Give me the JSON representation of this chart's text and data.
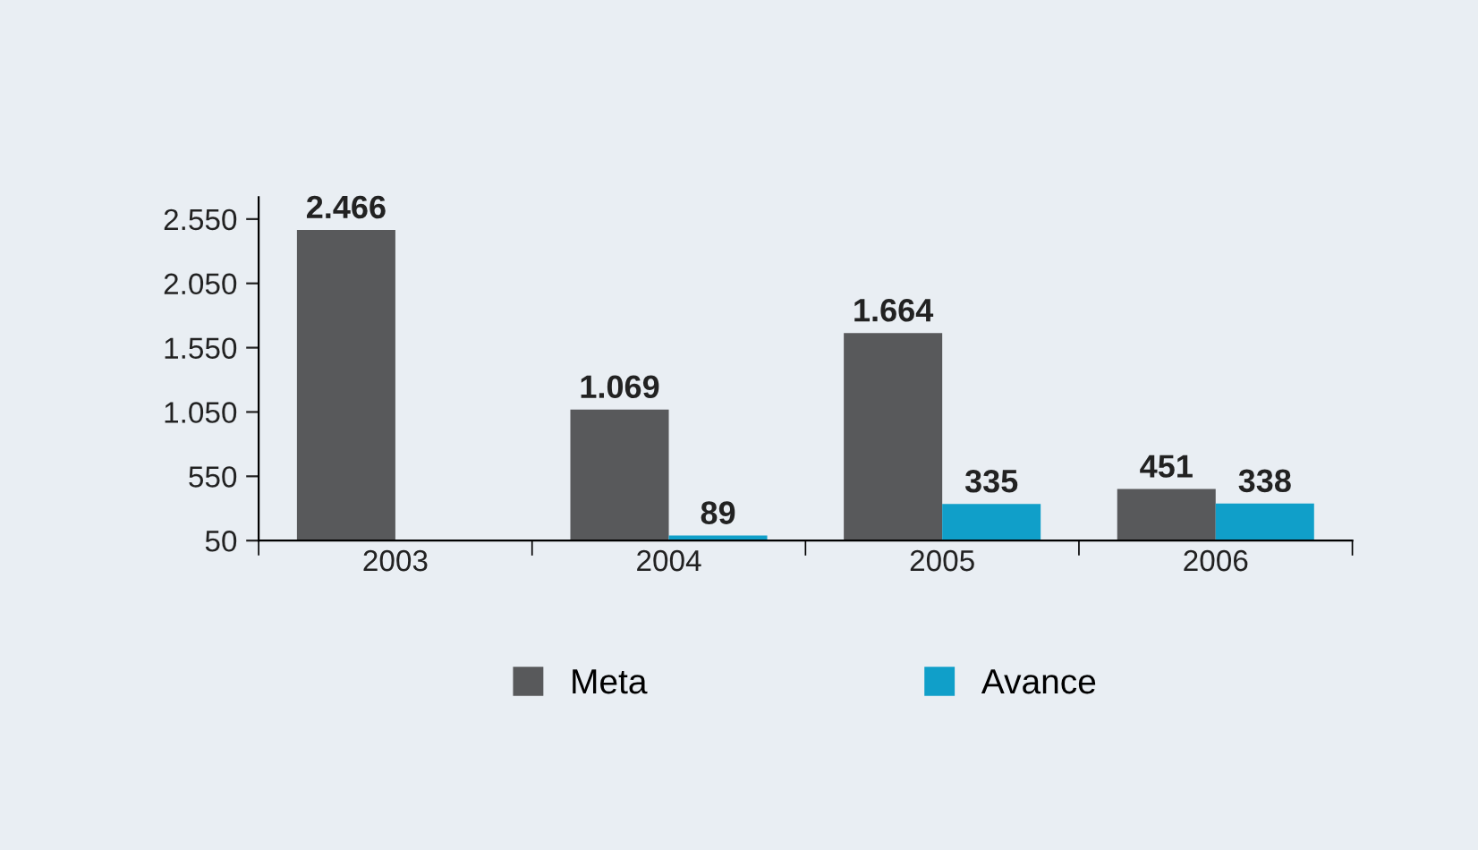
{
  "chart_data": {
    "type": "bar",
    "categories": [
      "2003",
      "2004",
      "2005",
      "2006"
    ],
    "series": [
      {
        "name": "Meta",
        "color": "#58595b",
        "values": [
          2466,
          1069,
          1664,
          451
        ],
        "value_labels": [
          "2.466",
          "1.069",
          "1.664",
          "451"
        ]
      },
      {
        "name": "Avance",
        "color": "#109fc9",
        "values": [
          null,
          89,
          335,
          338
        ],
        "value_labels": [
          null,
          "89",
          "335",
          "338"
        ]
      }
    ],
    "ylim": [
      50,
      2720
    ],
    "yticks": [
      {
        "value": 50,
        "label": "50"
      },
      {
        "value": 550,
        "label": "550"
      },
      {
        "value": 1050,
        "label": "1.050"
      },
      {
        "value": 1550,
        "label": "1.550"
      },
      {
        "value": 2050,
        "label": "2.050"
      },
      {
        "value": 2550,
        "label": "2.550"
      }
    ],
    "grid": false,
    "legend": "bottom"
  }
}
